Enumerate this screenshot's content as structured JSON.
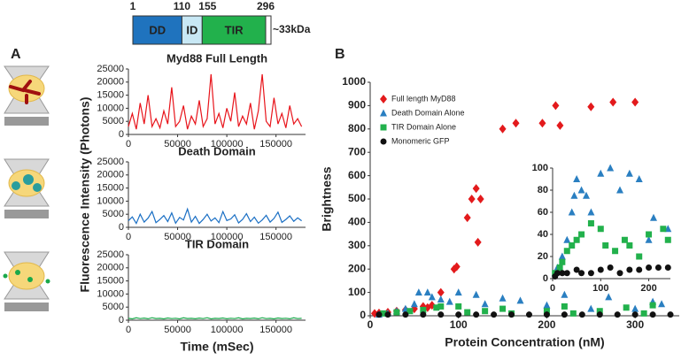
{
  "panel_labels": [
    "A",
    "B"
  ],
  "domain_diagram": {
    "positions": [
      1,
      110,
      155,
      296
    ],
    "domains": [
      "DD",
      "ID",
      "TIR"
    ],
    "colors": [
      "#1f73be",
      "#c8e8f5",
      "#22b14c"
    ],
    "size": "~33kDa"
  },
  "chart_data": [
    {
      "type": "line",
      "title": "Myd88 Full Length",
      "color": "#e8141b",
      "x": [
        0,
        4000,
        8000,
        12000,
        16000,
        20000,
        24000,
        28000,
        32000,
        36000,
        40000,
        44000,
        48000,
        52000,
        56000,
        60000,
        64000,
        68000,
        72000,
        76000,
        80000,
        84000,
        88000,
        92000,
        96000,
        100000,
        104000,
        108000,
        112000,
        116000,
        120000,
        124000,
        128000,
        132000,
        136000,
        140000,
        144000,
        148000,
        152000,
        156000,
        160000,
        164000,
        168000,
        172000,
        176000
      ],
      "values": [
        3000,
        8000,
        2000,
        12000,
        4000,
        15000,
        3000,
        6000,
        2500,
        9000,
        4000,
        18000,
        3000,
        5000,
        11000,
        2000,
        7000,
        4000,
        13000,
        3000,
        6000,
        23000,
        4000,
        8000,
        2500,
        10000,
        5000,
        16000,
        3000,
        7000,
        4000,
        12000,
        2000,
        9000,
        23000,
        5000,
        3000,
        14000,
        4000,
        8000,
        2500,
        11000,
        4000,
        6000,
        3000
      ],
      "xlim": [
        0,
        180000
      ],
      "xticks": [
        0,
        50000,
        100000,
        150000
      ],
      "ylim": [
        0,
        25000
      ],
      "yticks": [
        0,
        5000,
        10000,
        15000,
        20000,
        25000
      ]
    },
    {
      "type": "line",
      "title": "Death Domain",
      "color": "#1a6fc4",
      "ylabel": "Fluorescence Intensity (Photons)",
      "x": [
        0,
        4000,
        8000,
        12000,
        16000,
        20000,
        24000,
        28000,
        32000,
        36000,
        40000,
        44000,
        48000,
        52000,
        56000,
        60000,
        64000,
        68000,
        72000,
        76000,
        80000,
        84000,
        88000,
        92000,
        96000,
        100000,
        104000,
        108000,
        112000,
        116000,
        120000,
        124000,
        128000,
        132000,
        136000,
        140000,
        144000,
        148000,
        152000,
        156000,
        160000,
        164000,
        168000,
        172000,
        176000
      ],
      "values": [
        2500,
        4000,
        1500,
        5000,
        2000,
        3500,
        6000,
        1800,
        3000,
        4500,
        2200,
        5500,
        1600,
        3800,
        2800,
        7000,
        2000,
        4200,
        1500,
        3000,
        5000,
        2400,
        3600,
        1800,
        6000,
        2600,
        3200,
        4800,
        1700,
        3000,
        5200,
        2200,
        3900,
        1600,
        2800,
        4600,
        2000,
        3400,
        5800,
        1900,
        3000,
        4400,
        2300,
        3600,
        2500
      ],
      "xlim": [
        0,
        180000
      ],
      "xticks": [
        0,
        50000,
        100000,
        150000
      ],
      "ylim": [
        0,
        25000
      ],
      "yticks": [
        0,
        5000,
        10000,
        15000,
        20000,
        25000
      ]
    },
    {
      "type": "line",
      "title": "TIR Domain",
      "color": "#1aa84a",
      "xlabel": "Time (mSec)",
      "x": [
        0,
        4000,
        8000,
        12000,
        16000,
        20000,
        24000,
        28000,
        32000,
        36000,
        40000,
        44000,
        48000,
        52000,
        56000,
        60000,
        64000,
        68000,
        72000,
        76000,
        80000,
        84000,
        88000,
        92000,
        96000,
        100000,
        104000,
        108000,
        112000,
        116000,
        120000,
        124000,
        128000,
        132000,
        136000,
        140000,
        144000,
        148000,
        152000,
        156000,
        160000,
        164000,
        168000,
        172000,
        176000
      ],
      "values": [
        700,
        500,
        900,
        600,
        800,
        550,
        950,
        650,
        700,
        500,
        850,
        600,
        750,
        500,
        900,
        650,
        700,
        550,
        800,
        600,
        950,
        500,
        700,
        650,
        850,
        550,
        750,
        600,
        900,
        500,
        700,
        650,
        800,
        550,
        950,
        600,
        700,
        500,
        850,
        650,
        750,
        550,
        900,
        600,
        700
      ],
      "xlim": [
        0,
        180000
      ],
      "xticks": [
        0,
        50000,
        100000,
        150000
      ],
      "ylim": [
        0,
        25000
      ],
      "yticks": [
        0,
        5000,
        10000,
        15000,
        20000,
        25000
      ]
    },
    {
      "type": "scatter",
      "xlabel": "Protein Concentration (nM)",
      "ylabel": "Brightness",
      "xlim": [
        0,
        350
      ],
      "xticks": [
        0,
        100,
        200,
        300
      ],
      "ylim": [
        0,
        1000
      ],
      "yticks": [
        0,
        100,
        200,
        300,
        400,
        500,
        600,
        700,
        800,
        900,
        1000
      ],
      "series": [
        {
          "name": "Full length MyD88",
          "color": "#e31a1c",
          "marker": "diamond",
          "x": [
            5,
            10,
            20,
            30,
            40,
            50,
            60,
            65,
            70,
            80,
            95,
            98,
            110,
            115,
            120,
            122,
            125,
            150,
            165,
            195,
            210,
            215,
            250,
            275,
            300
          ],
          "values": [
            10,
            12,
            15,
            20,
            25,
            30,
            40,
            35,
            45,
            100,
            200,
            210,
            420,
            500,
            545,
            315,
            500,
            800,
            825,
            825,
            900,
            815,
            895,
            915,
            915
          ]
        },
        {
          "name": "Death Domain Alone",
          "color": "#2a7fc1",
          "marker": "triangle",
          "x": [
            10,
            20,
            30,
            40,
            50,
            55,
            65,
            70,
            80,
            90,
            100,
            120,
            130,
            150,
            170,
            200,
            220,
            250,
            270,
            300,
            320,
            330
          ],
          "values": [
            5,
            10,
            20,
            30,
            50,
            100,
            100,
            80,
            70,
            60,
            100,
            90,
            50,
            75,
            65,
            45,
            90,
            30,
            80,
            30,
            60,
            50
          ]
        },
        {
          "name": "TIR Domain Alone",
          "color": "#22b14c",
          "marker": "square",
          "x": [
            15,
            30,
            45,
            60,
            75,
            80,
            100,
            110,
            130,
            150,
            160,
            200,
            220,
            230,
            260,
            290,
            310,
            320
          ],
          "values": [
            10,
            15,
            20,
            25,
            35,
            40,
            40,
            15,
            20,
            30,
            10,
            20,
            40,
            10,
            20,
            35,
            10,
            45
          ]
        },
        {
          "name": "Monomeric GFP",
          "color": "#111111",
          "marker": "circle",
          "x": [
            10,
            20,
            40,
            60,
            80,
            100,
            120,
            140,
            160,
            180,
            200,
            220,
            240,
            260,
            280,
            300,
            320,
            340
          ],
          "values": [
            5,
            5,
            5,
            5,
            5,
            5,
            5,
            5,
            5,
            5,
            5,
            5,
            5,
            5,
            5,
            5,
            5,
            5
          ]
        }
      ]
    },
    {
      "type": "scatter",
      "xlim": [
        0,
        245
      ],
      "xticks": [
        0,
        100,
        200
      ],
      "ylim": [
        0,
        100
      ],
      "yticks": [
        0,
        20,
        40,
        60,
        80,
        100
      ],
      "series": [
        {
          "color": "#2a7fc1",
          "marker": "triangle",
          "x": [
            5,
            10,
            20,
            30,
            40,
            45,
            50,
            60,
            70,
            80,
            100,
            120,
            140,
            160,
            180,
            200,
            210,
            240
          ],
          "values": [
            5,
            10,
            20,
            35,
            60,
            75,
            90,
            80,
            75,
            60,
            95,
            100,
            80,
            95,
            90,
            35,
            55,
            45
          ]
        },
        {
          "color": "#22b14c",
          "marker": "square",
          "x": [
            5,
            15,
            20,
            30,
            40,
            50,
            60,
            80,
            100,
            110,
            130,
            150,
            160,
            180,
            200,
            230,
            240
          ],
          "values": [
            5,
            10,
            15,
            25,
            30,
            35,
            40,
            50,
            45,
            30,
            25,
            35,
            30,
            20,
            40,
            45,
            35
          ]
        },
        {
          "color": "#111111",
          "marker": "circle",
          "x": [
            5,
            10,
            20,
            30,
            50,
            60,
            80,
            100,
            120,
            140,
            160,
            180,
            200,
            220,
            240
          ],
          "values": [
            2,
            5,
            5,
            5,
            8,
            5,
            5,
            8,
            10,
            5,
            8,
            8,
            10,
            10,
            10
          ]
        }
      ]
    }
  ]
}
